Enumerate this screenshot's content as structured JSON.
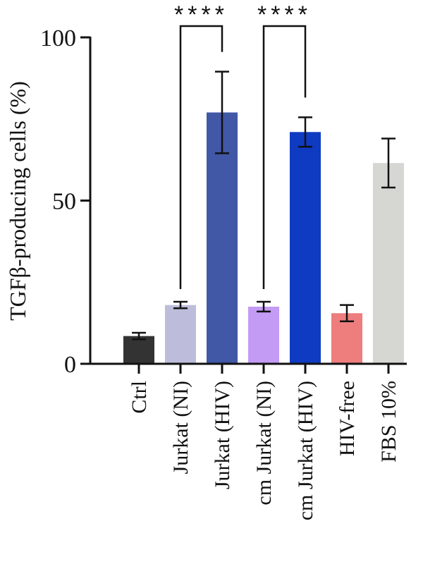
{
  "chart_data": {
    "type": "bar",
    "ylabel": "TGFβ-producing cells (%)",
    "ylim": [
      0,
      100
    ],
    "yticks": [
      0,
      50,
      100
    ],
    "categories": [
      "Ctrl",
      "Jurkat (NI)",
      "Jurkat (HIV)",
      "cm Jurkat (NI)",
      "cm Jurkat (HIV)",
      "HIV-free",
      "FBS 10%"
    ],
    "values": [
      8.5,
      18,
      77,
      17.5,
      71,
      15.5,
      61.5
    ],
    "errors": [
      1,
      1,
      12.5,
      1.5,
      4.5,
      2.5,
      7.5
    ],
    "colors": [
      "#333333",
      "#bdbddb",
      "#4158a6",
      "#c39bf5",
      "#0f3bc2",
      "#ee7d7d",
      "#d6d6d3"
    ],
    "comparisons": [
      {
        "from": "Jurkat (NI)",
        "to": "Jurkat (HIV)",
        "label": "****"
      },
      {
        "from": "cm Jurkat (NI)",
        "to": "cm Jurkat (HIV)",
        "label": "****"
      }
    ]
  }
}
